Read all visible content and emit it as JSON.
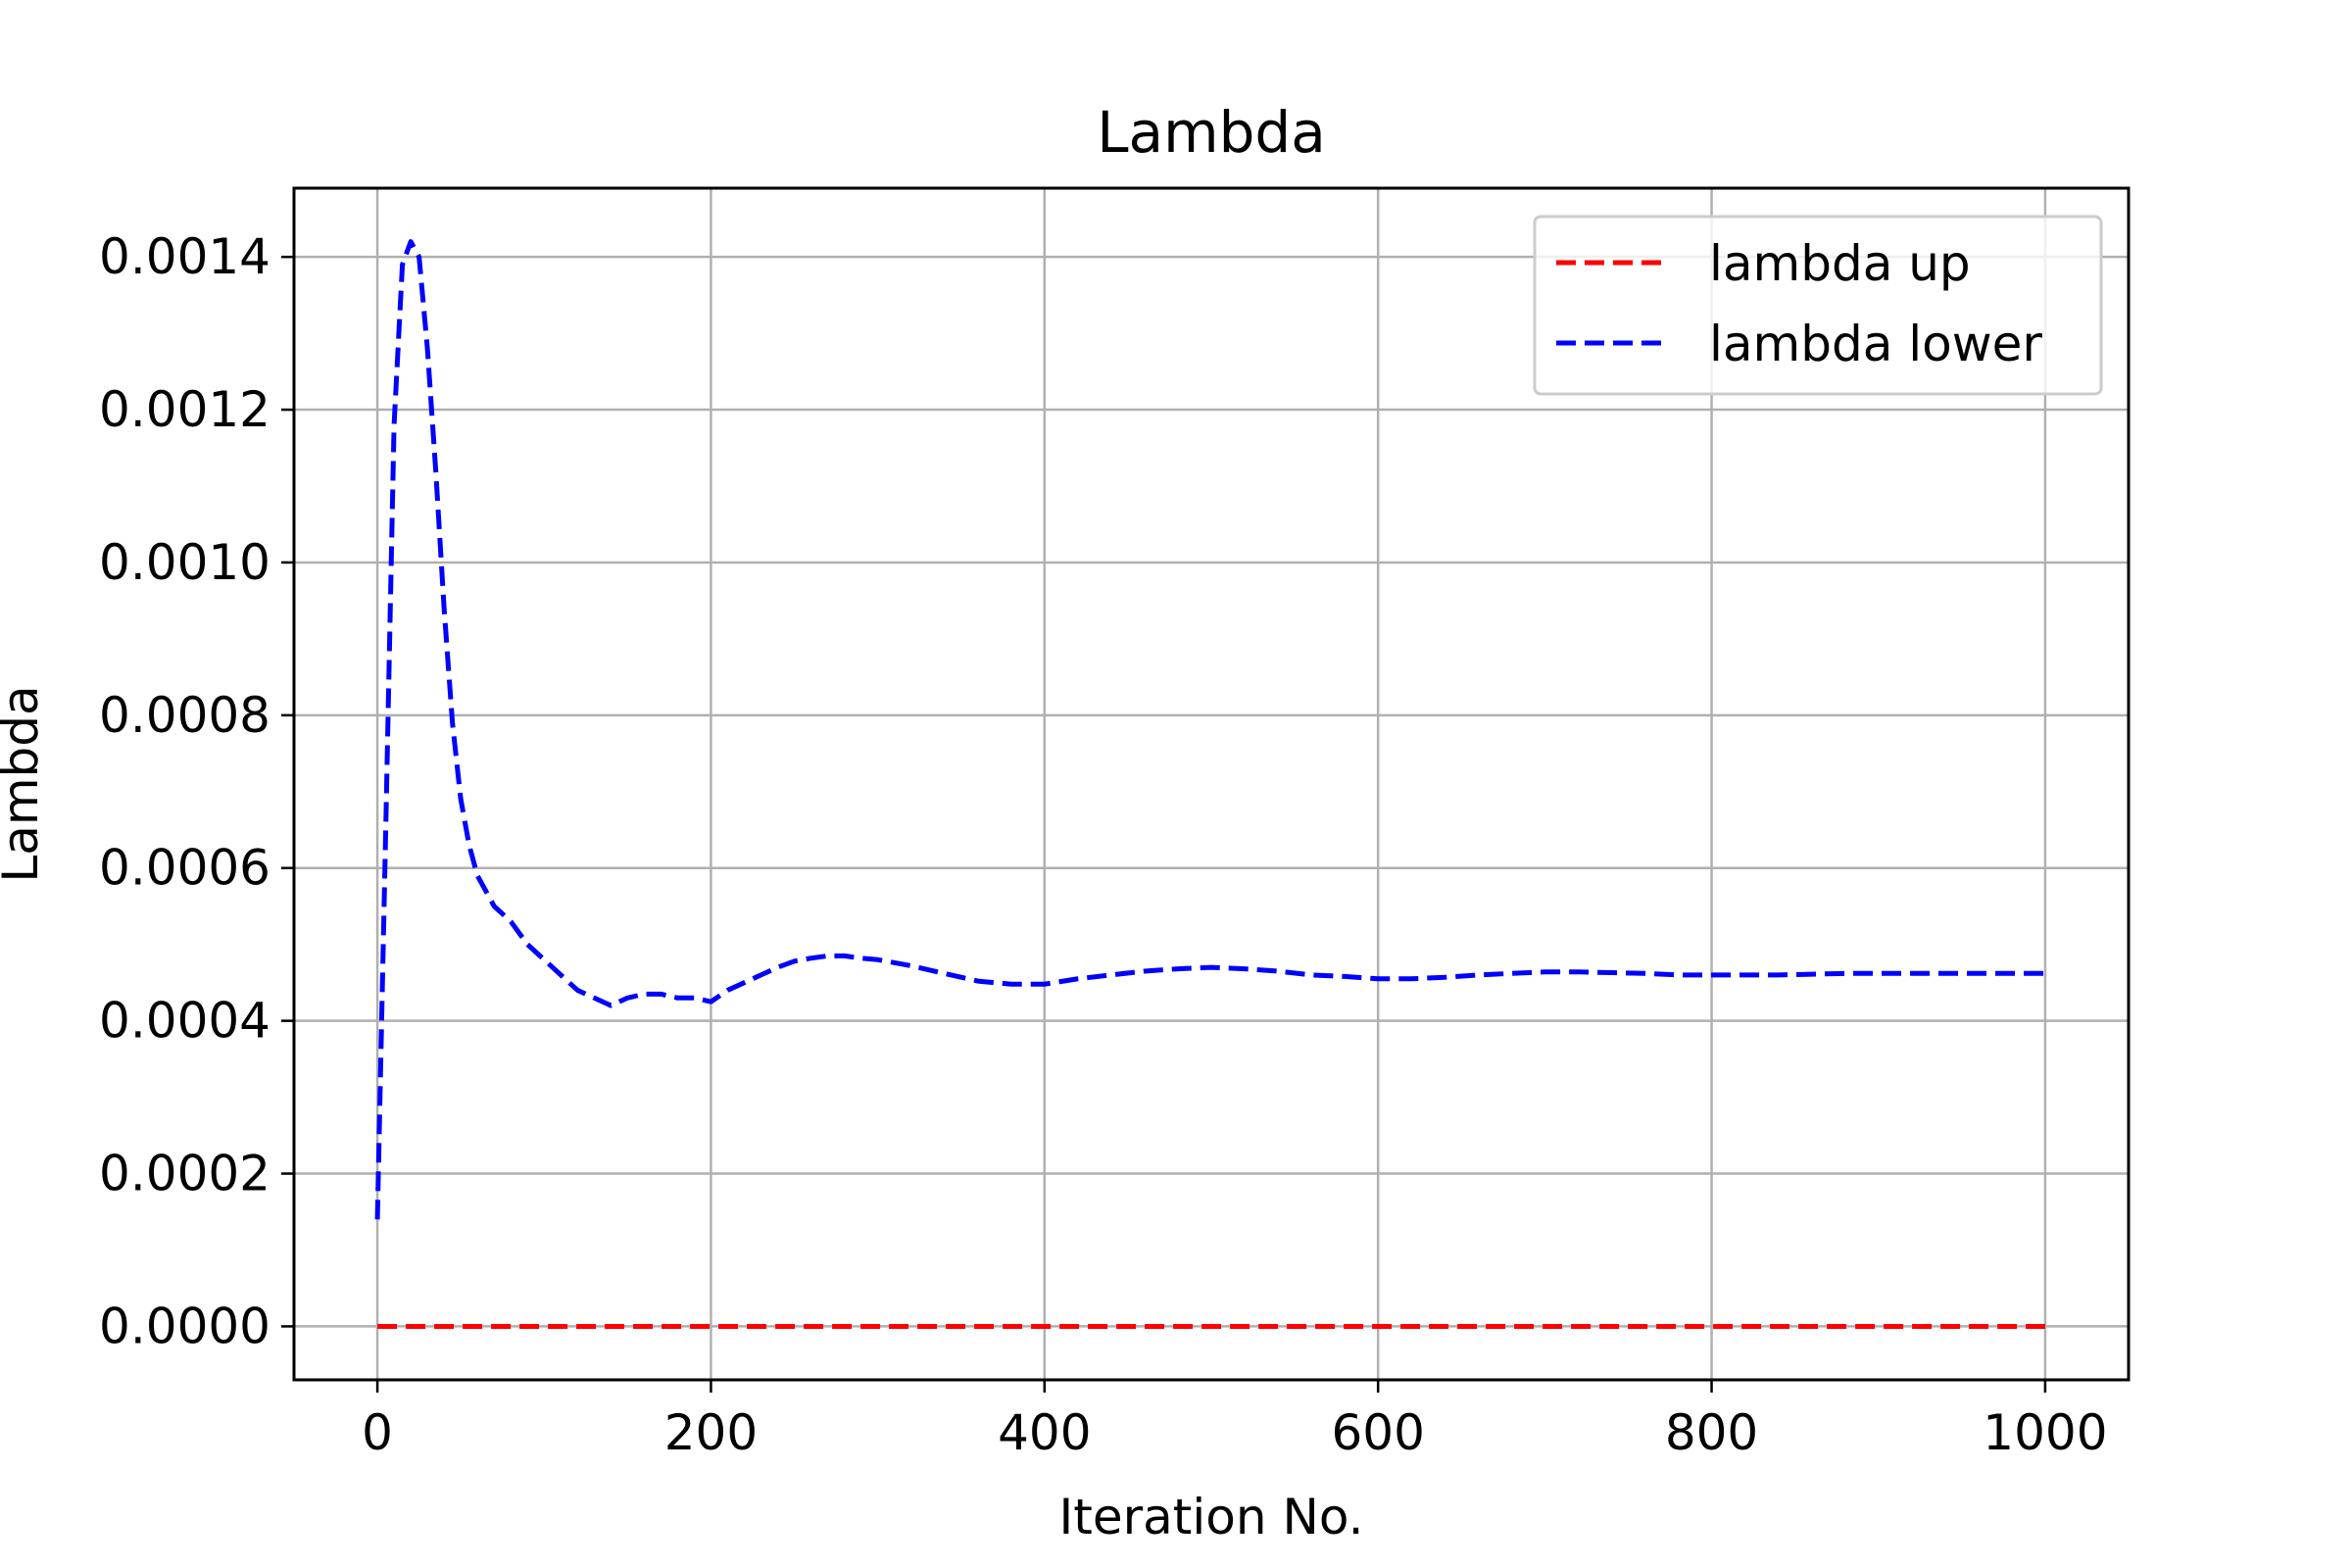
{
  "chart_data": {
    "type": "line",
    "title": "Lambda",
    "xlabel": "Iteration No.",
    "ylabel": "Lambda",
    "xlim": [
      -50,
      1050
    ],
    "ylim": [
      -7e-05,
      0.00149
    ],
    "xticks": [
      0,
      200,
      400,
      600,
      800,
      1000
    ],
    "xtick_labels": [
      "0",
      "200",
      "400",
      "600",
      "800",
      "1000"
    ],
    "yticks": [
      0.0,
      0.0002,
      0.0004,
      0.0006,
      0.0008,
      0.001,
      0.0012,
      0.0014
    ],
    "ytick_labels": [
      "0.0000",
      "0.0002",
      "0.0004",
      "0.0006",
      "0.0008",
      "0.0010",
      "0.0012",
      "0.0014"
    ],
    "grid": true,
    "legend_position": "upper right",
    "series": [
      {
        "name": "lambda up",
        "color": "#ff0000",
        "line_style": "dashed",
        "x": [
          0,
          200,
          400,
          600,
          800,
          1000
        ],
        "y": [
          0.0,
          0.0,
          0.0,
          0.0,
          0.0,
          0.0
        ]
      },
      {
        "name": "lambda lower",
        "color": "#0000ff",
        "line_style": "dashed",
        "x": [
          0,
          5,
          10,
          15,
          20,
          25,
          30,
          35,
          40,
          45,
          50,
          55,
          60,
          70,
          80,
          90,
          100,
          110,
          120,
          130,
          140,
          150,
          160,
          170,
          180,
          190,
          200,
          210,
          220,
          230,
          240,
          250,
          260,
          270,
          280,
          290,
          300,
          320,
          340,
          360,
          380,
          400,
          420,
          440,
          460,
          480,
          500,
          520,
          540,
          560,
          580,
          600,
          620,
          640,
          660,
          680,
          700,
          720,
          740,
          760,
          780,
          800,
          820,
          840,
          860,
          880,
          900,
          920,
          940,
          960,
          980,
          1000
        ],
        "y": [
          0.00014,
          0.00065,
          0.00118,
          0.00139,
          0.00142,
          0.0014,
          0.00128,
          0.00112,
          0.00094,
          0.00079,
          0.00069,
          0.00063,
          0.00059,
          0.00055,
          0.00053,
          0.0005,
          0.00048,
          0.00046,
          0.00044,
          0.00043,
          0.00042,
          0.00043,
          0.000435,
          0.000435,
          0.00043,
          0.00043,
          0.000425,
          0.00044,
          0.00045,
          0.00046,
          0.00047,
          0.000478,
          0.000482,
          0.000485,
          0.000485,
          0.000482,
          0.00048,
          0.000472,
          0.000462,
          0.000452,
          0.000448,
          0.000448,
          0.000455,
          0.00046,
          0.000465,
          0.000468,
          0.00047,
          0.000468,
          0.000465,
          0.00046,
          0.000458,
          0.000455,
          0.000455,
          0.000457,
          0.00046,
          0.000462,
          0.000464,
          0.000464,
          0.000463,
          0.000462,
          0.00046,
          0.00046,
          0.00046,
          0.00046,
          0.000461,
          0.000462,
          0.000462,
          0.000462,
          0.000462,
          0.000462,
          0.000462,
          0.000462
        ]
      }
    ]
  }
}
